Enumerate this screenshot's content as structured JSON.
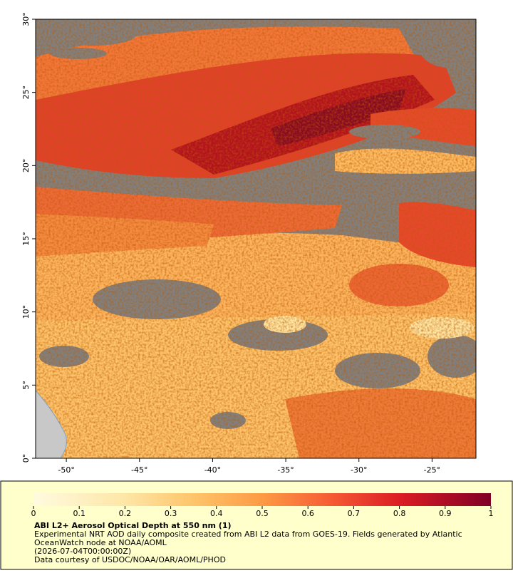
{
  "chart_data": {
    "type": "map",
    "title": "ABI L2+ Aerosol Optical Depth at 550 nm (1)",
    "description": [
      "Experimental NRT AOD daily composite created from ABI L2 data from GOES-19. Fields generated by Atlantic",
      "OceanWatch node at NOAA/AOML",
      "(2026-07-04T00:00:00Z)",
      "Data courtesy of USDOC/NOAA/OAR/AOML/PHOD"
    ],
    "xlim": [
      -52.1,
      -22
    ],
    "ylim": [
      0,
      30
    ],
    "xticks": [
      {
        "value": -50,
        "label": "-50°"
      },
      {
        "value": -45,
        "label": "-45°"
      },
      {
        "value": -40,
        "label": "-40°"
      },
      {
        "value": -35,
        "label": "-35°"
      },
      {
        "value": -30,
        "label": "-30°"
      },
      {
        "value": -25,
        "label": "-25°"
      }
    ],
    "yticks": [
      {
        "value": 0,
        "label": "0°"
      },
      {
        "value": 5,
        "label": "5°"
      },
      {
        "value": 10,
        "label": "10°"
      },
      {
        "value": 15,
        "label": "15°"
      },
      {
        "value": 20,
        "label": "20°"
      },
      {
        "value": 25,
        "label": "25°"
      },
      {
        "value": 30,
        "label": "30°"
      }
    ],
    "colorbar": {
      "lim": [
        0,
        1
      ],
      "ticks": [
        0,
        0.1,
        0.2,
        0.3,
        0.4,
        0.5,
        0.6,
        0.7,
        0.8,
        0.9,
        1
      ]
    }
  }
}
